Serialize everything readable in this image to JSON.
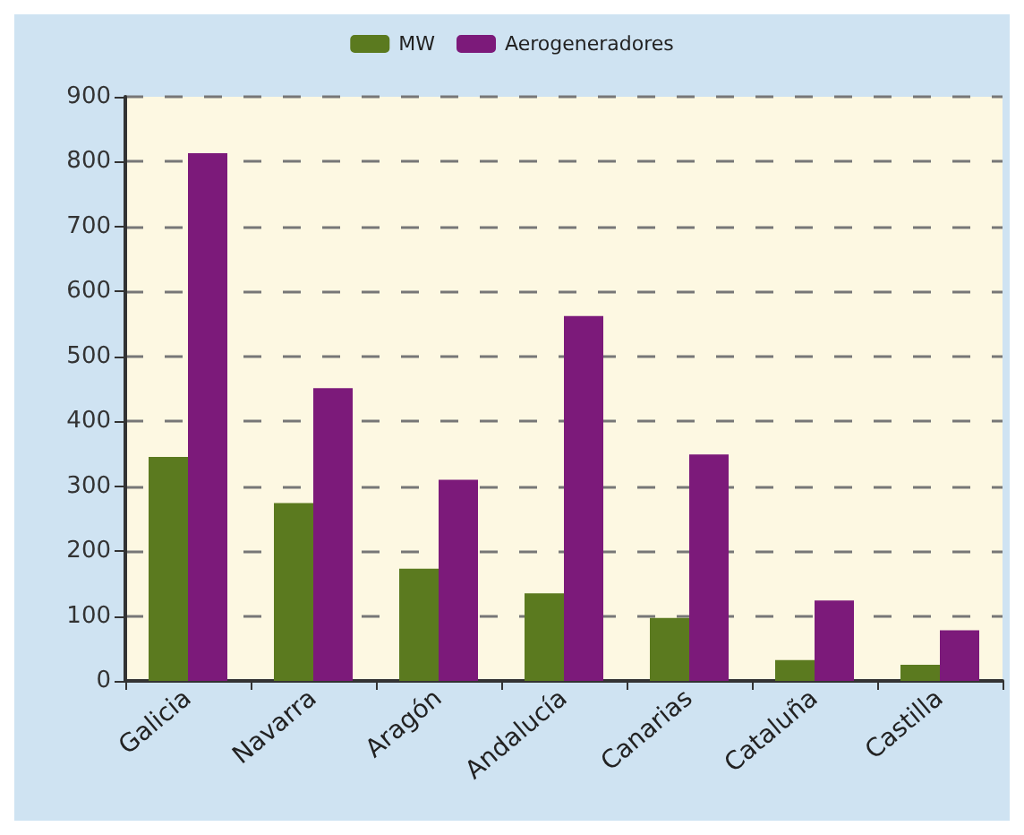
{
  "chart_data": {
    "type": "bar",
    "categories": [
      "Galicia",
      "Navarra",
      "Aragón",
      "Andalucía",
      "Canarias",
      "Cataluña",
      "Castilla"
    ],
    "series": [
      {
        "name": "MW",
        "color": "#5b7a1f",
        "values": [
          345,
          274,
          173,
          135,
          97,
          32,
          25
        ]
      },
      {
        "name": "Aerogeneradores",
        "color": "#7c1a7a",
        "values": [
          813,
          451,
          310,
          562,
          349,
          124,
          78
        ]
      }
    ],
    "ylim": [
      0,
      900
    ],
    "yticks": [
      0,
      100,
      200,
      300,
      400,
      500,
      600,
      700,
      800,
      900
    ],
    "grid": "y",
    "legend": "top"
  }
}
